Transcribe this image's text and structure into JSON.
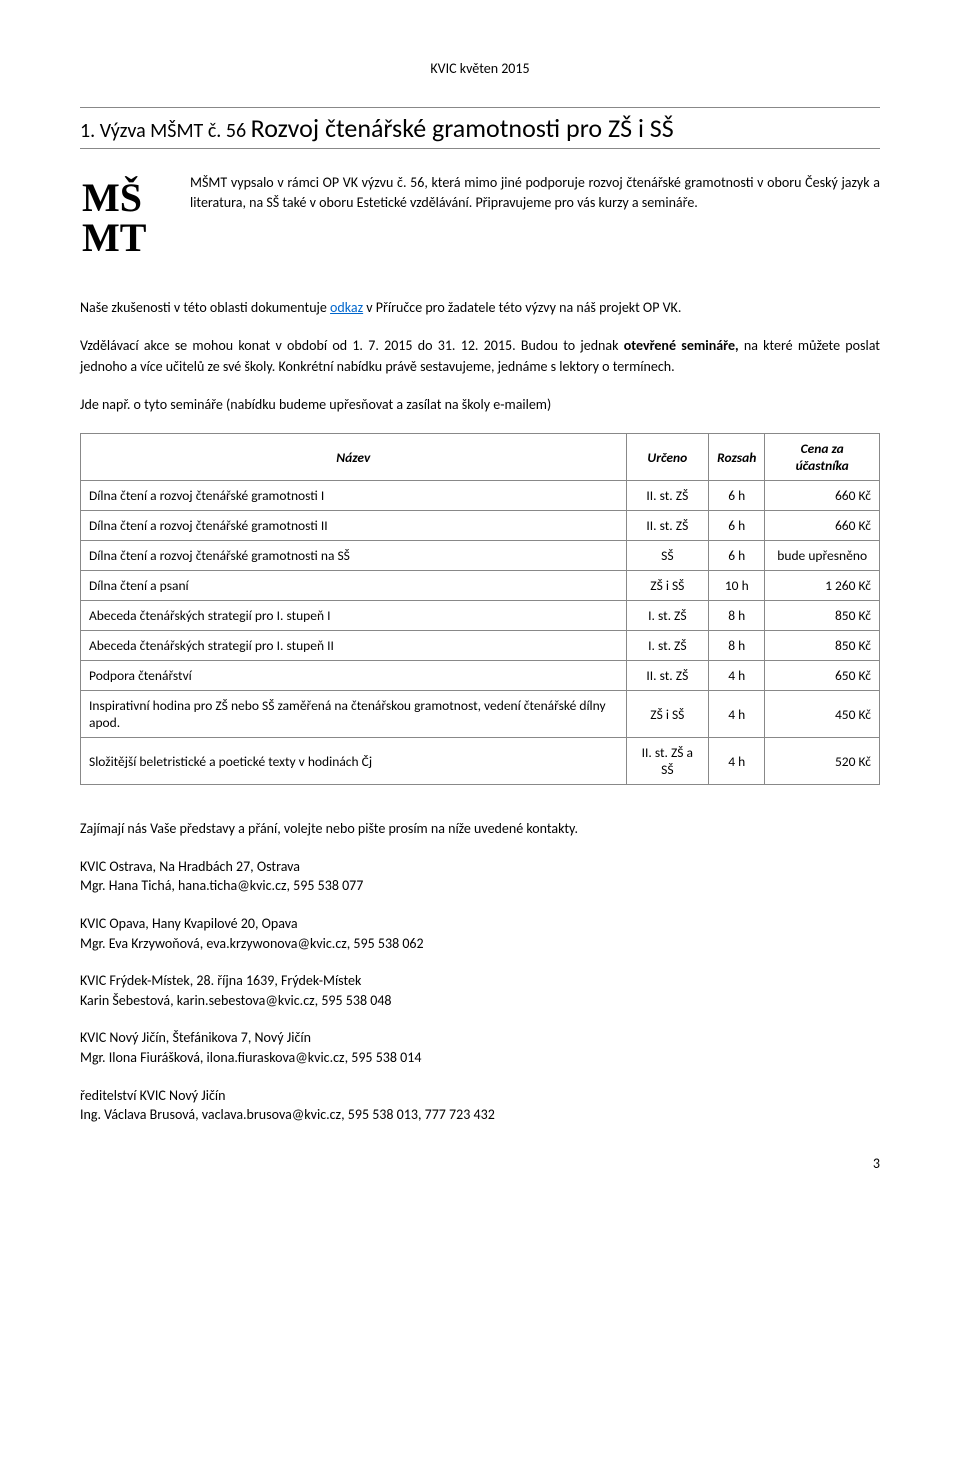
{
  "header": "KVIC květen 2015",
  "title": {
    "prefix": "1. Výzva MŠMT č. 56 ",
    "main": "Rozvoj čtenářské gramotnosti pro ZŠ i SŠ"
  },
  "intro": "MŠMT vypsalo v rámci OP VK výzvu č. 56, která mimo jiné podporuje rozvoj čtenářské gramotnosti v oboru Český jazyk a literatura, na SŠ také v oboru Estetické vzdělávání. Připravujeme pro vás kurzy a semináře.",
  "p1_a": "Naše zkušenosti v této oblasti dokumentuje ",
  "p1_link": "odkaz",
  "p1_b": " v Příručce pro žadatele této výzvy na náš projekt OP VK.",
  "p2_a": "Vzdělávací akce se mohou konat v období od 1. 7. 2015 do 31. 12. 2015. Budou to jednak ",
  "p2_bold": "otevřené semináře,",
  "p2_b": " na které můžete poslat jednoho a více učitelů ze své školy. Konkrétní nabídku právě sestavujeme, jednáme s lektory o termínech.",
  "p3": "Jde např. o tyto semináře (nabídku budeme upřesňovat a zasílat na školy e-mailem)",
  "table": {
    "headers": [
      "Název",
      "Určeno",
      "Rozsah",
      "Cena za účastníka"
    ],
    "rows": [
      [
        "Dílna čtení a rozvoj čtenářské gramotnosti I",
        "II. st. ZŠ",
        "6 h",
        "660 Kč"
      ],
      [
        "Dílna čtení a rozvoj čtenářské gramotnosti II",
        "II. st. ZŠ",
        "6 h",
        "660 Kč"
      ],
      [
        "Dílna čtení a rozvoj čtenářské gramotnosti na SŠ",
        "SŠ",
        "6 h",
        "bude upřesněno"
      ],
      [
        "Dílna čtení a psaní",
        "ZŠ i SŠ",
        "10 h",
        "1 260 Kč"
      ],
      [
        "Abeceda čtenářských strategií pro I. stupeň I",
        "I. st. ZŠ",
        "8 h",
        "850 Kč"
      ],
      [
        "Abeceda čtenářských strategií pro I. stupeň II",
        "I. st. ZŠ",
        "8 h",
        "850 Kč"
      ],
      [
        "Podpora čtenářství",
        "II. st. ZŠ",
        "4 h",
        "650 Kč"
      ],
      [
        "Inspirativní hodina pro ZŠ nebo SŠ zaměřená na čtenářskou gramotnost, vedení čtenářské dílny apod.",
        "ZŠ i SŠ",
        "4 h",
        "450 Kč"
      ],
      [
        "Složitější beletristické a poetické texty v hodinách Čj",
        "II. st. ZŠ a SŠ",
        "4 h",
        "520 Kč"
      ]
    ],
    "price_align": [
      "r",
      "r",
      "c",
      "r",
      "r",
      "r",
      "r",
      "r",
      "r"
    ]
  },
  "contacts_intro": "Zajímají nás Vaše představy a přání, volejte nebo pište prosím na níže uvedené kontakty.",
  "contacts": [
    [
      "KVIC Ostrava, Na Hradbách 27, Ostrava",
      "Mgr. Hana Tichá, hana.ticha@kvic.cz, 595 538 077"
    ],
    [
      "KVIC Opava, Hany Kvapilové 20, Opava",
      "Mgr. Eva Krzywoňová, eva.krzywonova@kvic.cz, 595 538 062"
    ],
    [
      "KVIC Frýdek-Místek, 28. října 1639, Frýdek-Místek",
      "Karin Šebestová, karin.sebestova@kvic.cz, 595 538 048"
    ],
    [
      "KVIC Nový Jičín, Štefánikova 7, Nový Jičín",
      "Mgr. Ilona Fiurášková, ilona.fiuraskova@kvic.cz, 595 538 014"
    ],
    [
      "ředitelství KVIC Nový Jičín",
      "Ing. Václava Brusová, vaclava.brusova@kvic.cz, 595 538 013, 777 723 432"
    ]
  ],
  "page_number": "3",
  "colors": {
    "text": "#000000",
    "link": "#0066cc",
    "border": "#888888",
    "background": "#ffffff"
  },
  "fonts": {
    "body_size": 14,
    "title_prefix_size": 20,
    "title_main_size": 26,
    "table_size": 13.5
  }
}
